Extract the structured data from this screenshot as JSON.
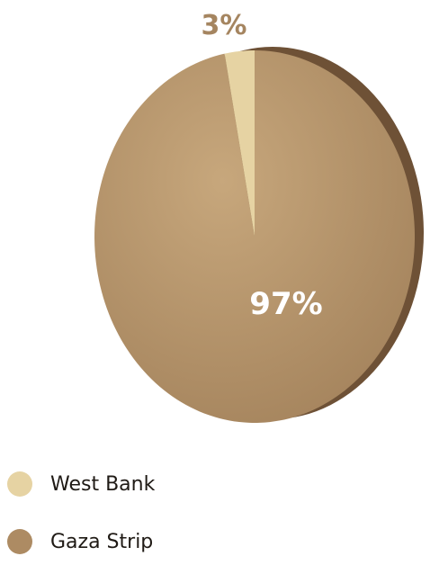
{
  "chart_data": {
    "type": "pie",
    "categories": [
      "West Bank",
      "Gaza Strip"
    ],
    "values": [
      3,
      97
    ],
    "data_labels": [
      "3%",
      "97%"
    ],
    "colors": {
      "West Bank": "#e6d3a3",
      "Gaza Strip": "#ad8b63",
      "side": "#6e5136",
      "small_label": "#a58560",
      "large_label": "#ffffff"
    },
    "legend_position": "bottom-left"
  }
}
